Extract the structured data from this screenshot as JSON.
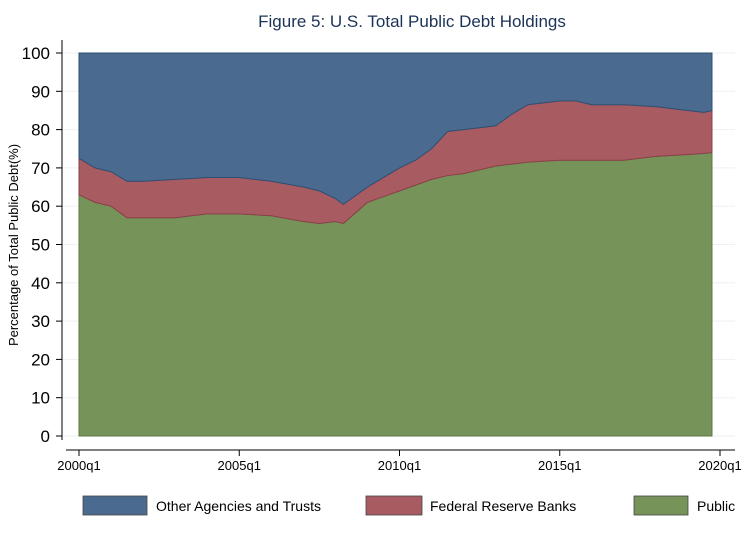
{
  "chart_data": {
    "type": "area",
    "stacked": true,
    "title": "Figure 5: U.S. Total Public Debt Holdings",
    "xlabel": "",
    "ylabel": "Percentage of Total Public Debt(%)",
    "ylim": [
      0,
      100
    ],
    "yticks": [
      0,
      10,
      20,
      30,
      40,
      50,
      60,
      70,
      80,
      90,
      100
    ],
    "xticks": [
      "2000q1",
      "2005q1",
      "2010q1",
      "2015q1",
      "2020q1"
    ],
    "xlim": [
      "2000q1",
      "2020q1"
    ],
    "grid": true,
    "legend_position": "bottom",
    "x": [
      "2000q1",
      "2000q3",
      "2001q1",
      "2001q3",
      "2002q1",
      "2003q1",
      "2004q1",
      "2005q1",
      "2006q1",
      "2007q1",
      "2007q3",
      "2008q1",
      "2008q2",
      "2009q1",
      "2010q1",
      "2010q3",
      "2011q1",
      "2011q3",
      "2012q1",
      "2013q1",
      "2013q3",
      "2014q1",
      "2015q1",
      "2015q3",
      "2016q1",
      "2017q1",
      "2018q1",
      "2019q1",
      "2019q3",
      "2019q4"
    ],
    "series": [
      {
        "name": "Public",
        "color": "#76935a",
        "values": [
          63,
          61,
          60,
          57,
          57,
          57,
          58,
          58,
          57.5,
          56,
          55.5,
          56,
          55.5,
          61,
          64,
          65.5,
          67,
          68,
          68.5,
          70.5,
          71,
          71.5,
          72,
          72,
          72,
          72,
          73,
          73.5,
          73.8,
          74
        ]
      },
      {
        "name": "Federal Reserve Banks",
        "color": "#a85c61",
        "values": [
          9.5,
          9,
          9,
          9.5,
          9.5,
          10,
          9.5,
          9.5,
          9,
          9,
          8.5,
          6,
          5,
          4,
          6,
          6.5,
          8,
          11.5,
          11.5,
          10.5,
          13,
          15,
          15.5,
          15.5,
          14.5,
          14.5,
          13,
          11.5,
          10.7,
          11
        ]
      },
      {
        "name": "Other Agencies and Trusts",
        "color": "#4a6b8f",
        "values": [
          27.5,
          30,
          31,
          33.5,
          33.5,
          33,
          32.5,
          32.5,
          33.5,
          35,
          36,
          38,
          39.5,
          35,
          30,
          28,
          25,
          20.5,
          20,
          19,
          16,
          13.5,
          12.5,
          12.5,
          13.5,
          13.5,
          14,
          15,
          15.5,
          15
        ]
      }
    ],
    "legend_order": [
      "Other Agencies and Trusts",
      "Federal Reserve Banks",
      "Public"
    ]
  }
}
